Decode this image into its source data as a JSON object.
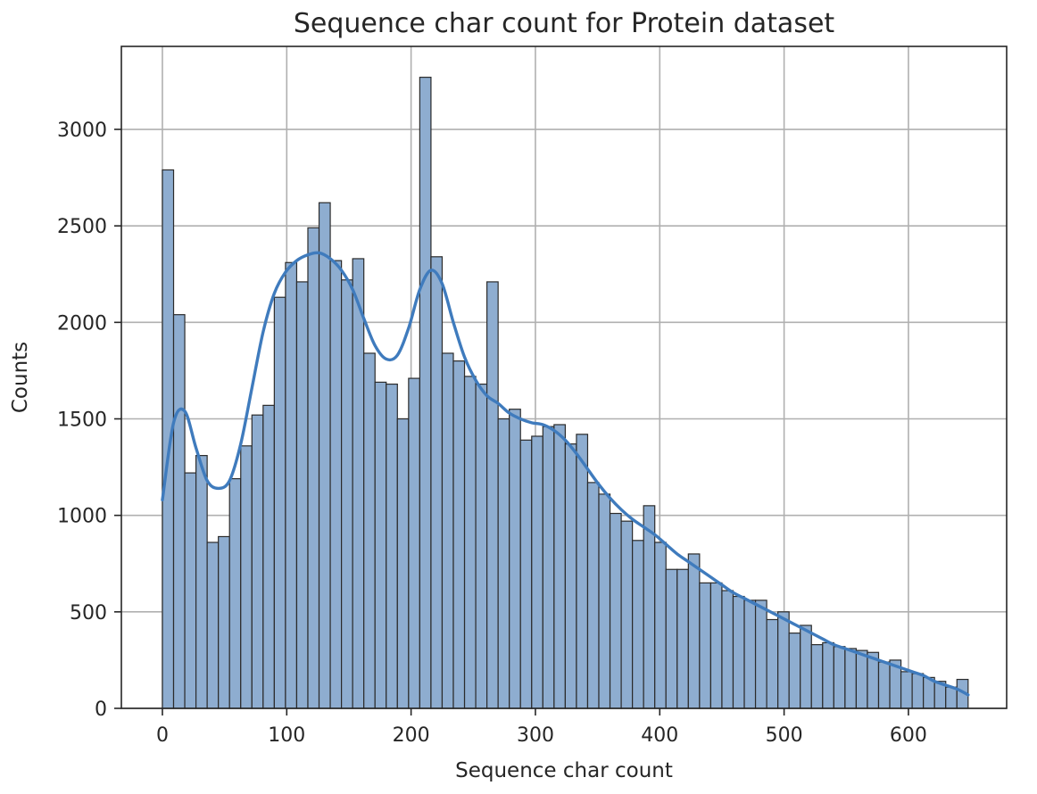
{
  "chart_data": {
    "type": "bar",
    "title": "Sequence char count for Protein dataset",
    "xlabel": "Sequence char count",
    "ylabel": "Counts",
    "xlim": [
      -33,
      679
    ],
    "ylim": [
      0,
      3430
    ],
    "xticks": [
      0,
      100,
      200,
      300,
      400,
      500,
      600
    ],
    "yticks": [
      0,
      500,
      1000,
      1500,
      2000,
      2500,
      3000
    ],
    "grid": true,
    "bin_start": 0,
    "bin_width": 9,
    "bar_color": "#8eadd0",
    "bar_edge_color": "#2b2b2b",
    "kde_color": "#3f7bbd",
    "values": [
      2790,
      2040,
      1220,
      1310,
      860,
      890,
      1190,
      1360,
      1520,
      1570,
      2130,
      2310,
      2210,
      2490,
      2620,
      2320,
      2220,
      2330,
      1840,
      1690,
      1680,
      1500,
      1710,
      3270,
      2340,
      1840,
      1800,
      1720,
      1680,
      2210,
      1500,
      1550,
      1390,
      1410,
      1460,
      1470,
      1370,
      1420,
      1170,
      1110,
      1010,
      970,
      870,
      1050,
      860,
      720,
      720,
      800,
      650,
      650,
      610,
      580,
      560,
      560,
      460,
      500,
      390,
      430,
      330,
      340,
      320,
      310,
      300,
      290,
      240,
      250,
      190,
      180,
      160,
      140,
      110,
      150
    ],
    "kde": {
      "x": [
        0,
        9,
        18,
        27,
        36,
        45,
        54,
        63,
        72,
        81,
        90,
        99,
        108,
        117,
        126,
        135,
        144,
        153,
        162,
        171,
        180,
        189,
        198,
        207,
        216,
        225,
        234,
        243,
        252,
        261,
        270,
        279,
        288,
        297,
        306,
        315,
        324,
        333,
        342,
        351,
        360,
        369,
        378,
        387,
        396,
        405,
        414,
        423,
        432,
        441,
        450,
        459,
        468,
        477,
        486,
        495,
        504,
        513,
        522,
        531,
        540,
        549,
        558,
        567,
        576,
        585,
        594,
        603,
        612,
        621,
        630,
        639,
        648
      ],
      "y": [
        1080,
        1480,
        1540,
        1350,
        1180,
        1140,
        1180,
        1370,
        1660,
        1950,
        2150,
        2260,
        2320,
        2350,
        2360,
        2330,
        2270,
        2170,
        2020,
        1880,
        1810,
        1830,
        1970,
        2170,
        2270,
        2200,
        2000,
        1820,
        1700,
        1620,
        1580,
        1530,
        1500,
        1480,
        1470,
        1440,
        1390,
        1320,
        1240,
        1160,
        1090,
        1030,
        980,
        940,
        900,
        850,
        800,
        760,
        720,
        680,
        640,
        600,
        570,
        540,
        510,
        480,
        450,
        420,
        390,
        360,
        330,
        310,
        290,
        270,
        250,
        230,
        210,
        190,
        170,
        140,
        120,
        100,
        70
      ]
    }
  }
}
